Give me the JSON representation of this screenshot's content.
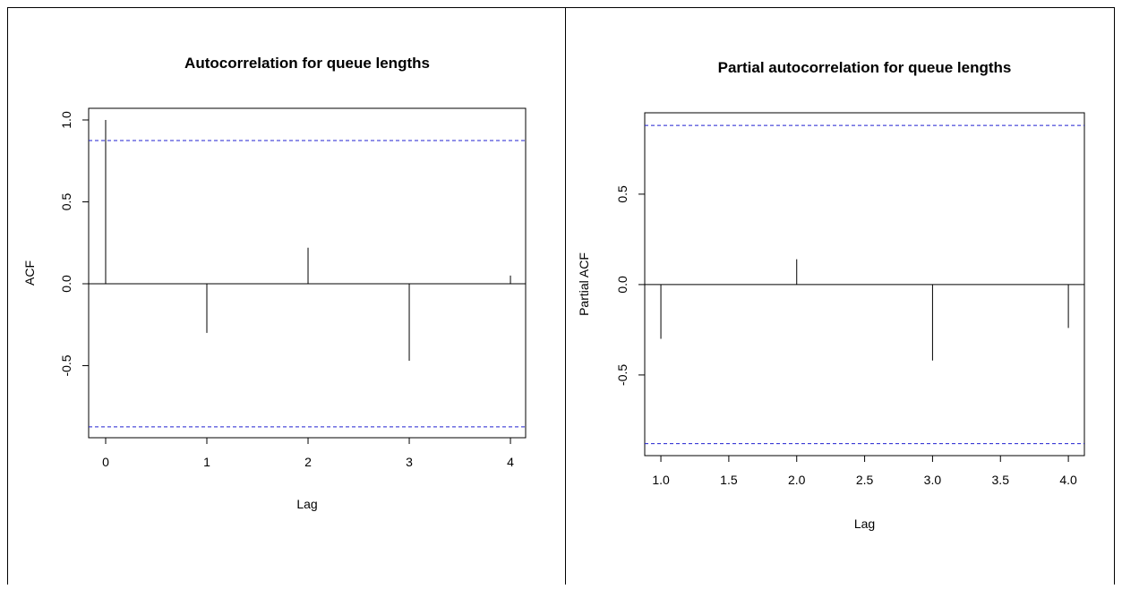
{
  "chart_data": [
    {
      "type": "stem",
      "title": "Autocorrelation for queue lengths",
      "x_label": "Lag",
      "y_label": "ACF",
      "x": [
        0,
        1,
        2,
        3,
        4
      ],
      "values": [
        1.0,
        -0.3,
        0.22,
        -0.47,
        0.05
      ],
      "color": "#000000",
      "confidence_bounds": [
        0.874,
        -0.874
      ],
      "bound_color": "#2020d0",
      "xlim": [
        -0.168,
        4.15
      ],
      "xticks": [
        0,
        1,
        2,
        3,
        4
      ],
      "ylim": [
        -0.94,
        1.071
      ],
      "yticks": [
        {
          "value": 1.0,
          "label": "1.0"
        },
        0.5,
        {
          "value": 0.0,
          "label": "0.0"
        },
        -0.5
      ]
    },
    {
      "type": "stem",
      "title": "Partial autocorrelation for queue lengths",
      "x_label": "Lag",
      "y_label": "Partial ACF",
      "x": [
        1,
        2,
        3,
        4
      ],
      "values": [
        -0.3,
        0.14,
        -0.42,
        -0.24
      ],
      "color": "#000000",
      "confidence_bounds": [
        0.88,
        -0.88
      ],
      "bound_color": "#2020d0",
      "xlim": [
        0.881,
        4.118
      ],
      "xticks": [
        {
          "value": 1.0,
          "label": "1.0"
        },
        1.5,
        {
          "value": 2.0,
          "label": "2.0"
        },
        2.5,
        {
          "value": 3.0,
          "label": "3.0"
        },
        3.5,
        {
          "value": 4.0,
          "label": "4.0"
        }
      ],
      "ylim": [
        -0.946,
        0.95
      ],
      "yticks": [
        0.5,
        {
          "value": 0.0,
          "label": "0.0"
        },
        -0.5
      ]
    }
  ]
}
